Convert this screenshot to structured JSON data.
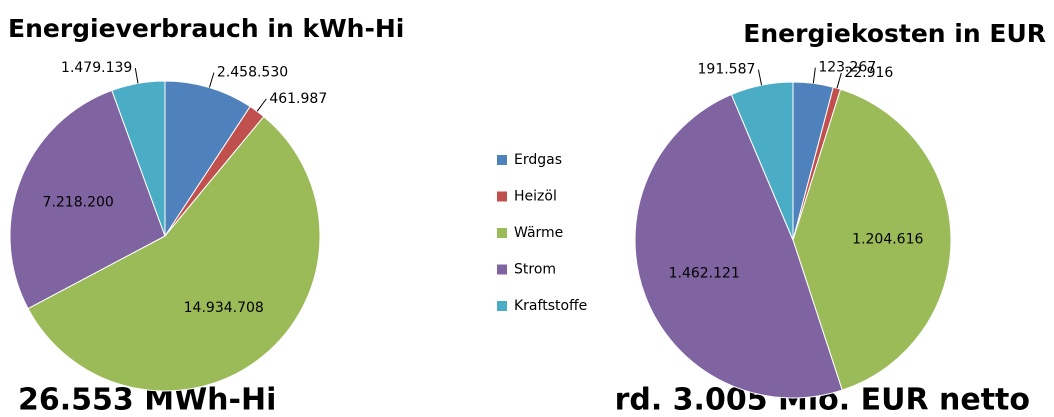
{
  "legend": {
    "categories": [
      "Erdgas",
      "Heizöl",
      "Wärme",
      "Strom",
      "Kraftstoffe"
    ],
    "colors": [
      "#4f81bd",
      "#c0504d",
      "#9bbb59",
      "#8064a2",
      "#4bacc6"
    ]
  },
  "chart_data": [
    {
      "type": "pie",
      "title": "Energieverbrauch in kWh-Hi",
      "values": [
        2458530,
        461987,
        14934708,
        7218200,
        1479139
      ],
      "value_labels": [
        "2.458.530",
        "461.987",
        "14.934.708",
        "7.218.200",
        "1.479.139"
      ],
      "annotation": "26.553 MWh-Hi"
    },
    {
      "type": "pie",
      "title": "Energiekosten in EUR",
      "values": [
        123267,
        22916,
        1204616,
        1462121,
        191587
      ],
      "value_labels": [
        "123.267",
        "22.916",
        "1.204.616",
        "1.462.121",
        "191.587"
      ],
      "annotation": "rd. 3.005 Mio. EUR netto"
    }
  ]
}
